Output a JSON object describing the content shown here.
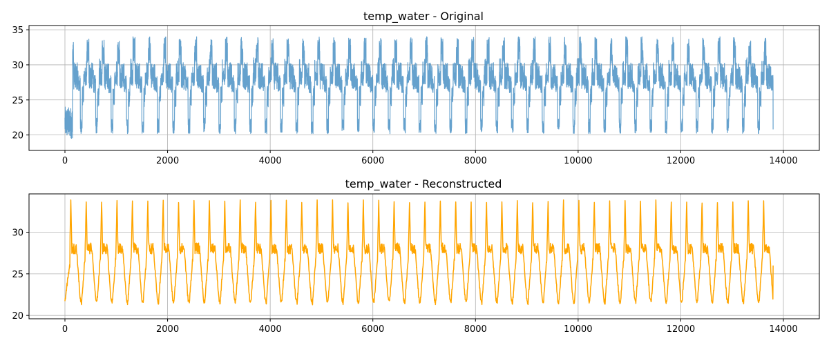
{
  "chart_data": [
    {
      "type": "line",
      "title": "temp_water - Original",
      "xlabel": "",
      "ylabel": "",
      "xlim": [
        -700,
        14700
      ],
      "ylim": [
        17.8,
        35.6
      ],
      "xticks": [
        0,
        2000,
        4000,
        6000,
        8000,
        10000,
        12000,
        14000
      ],
      "yticks": [
        20,
        25,
        30,
        35
      ],
      "grid": true,
      "series": [
        {
          "color": "#4a90c4",
          "opacity": 0.85,
          "n_points": 13800,
          "cycle_length": 300,
          "approx_min": 19.5,
          "approx_max": 34.5,
          "levels": {
            "low": 20.2,
            "mid_low": 24.0,
            "mid": 27.0,
            "upper": 30.0,
            "peak": 34.0
          }
        }
      ]
    },
    {
      "type": "line",
      "title": "temp_water - Reconstructed",
      "xlabel": "",
      "ylabel": "",
      "xlim": [
        -700,
        14700
      ],
      "ylim": [
        19.6,
        34.6
      ],
      "xticks": [
        0,
        2000,
        4000,
        6000,
        8000,
        10000,
        12000,
        14000
      ],
      "yticks": [
        20,
        25,
        30
      ],
      "grid": true,
      "series": [
        {
          "color": "#ffa500",
          "opacity": 1.0,
          "n_points": 13800,
          "cycle_length": 300,
          "approx_min": 20.5,
          "approx_max": 34.0,
          "levels": {
            "low": 21.2,
            "mid": 26.5,
            "plateau": 28.0,
            "peak": 33.8
          }
        }
      ]
    }
  ]
}
